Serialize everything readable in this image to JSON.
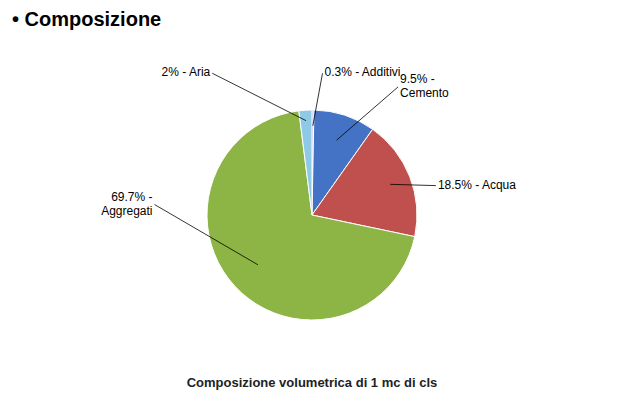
{
  "chart_data": {
    "type": "pie",
    "title": "• Composizione",
    "subtitle": "Composizione volumetrica di 1 mc di cls",
    "values": [
      0.3,
      9.5,
      18.5,
      69.7,
      2.0
    ],
    "value_labels": [
      "0.3% - Additivi",
      "9.5% -\nCemento",
      "18.5% - Acqua",
      "69.7% -\nAggregati",
      "2% - Aria"
    ],
    "colors": [
      "#7b68ee",
      "#4472c4",
      "#c0504d",
      "#8db545",
      "#8ecae6"
    ],
    "data_labels": true
  }
}
